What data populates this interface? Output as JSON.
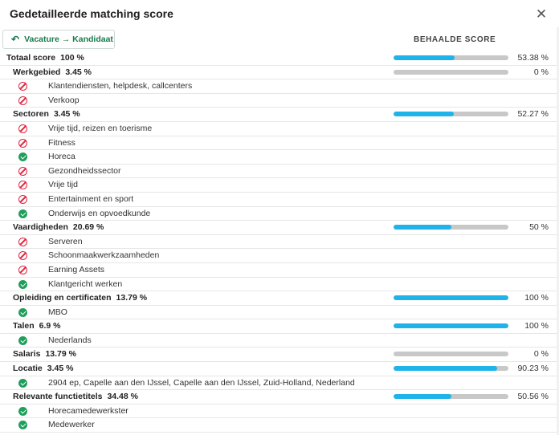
{
  "dialog": {
    "title": "Gedetailleerde matching score",
    "close_icon": "close-icon",
    "direction_button": "Vacature → Kandidaat",
    "direction_icon": "undo-arrow-icon",
    "column_header": "BEHAALDE SCORE"
  },
  "colors": {
    "bar_fill": "#1fb3ea",
    "bar_track": "#c8c8c8",
    "match": "#1f9e5c",
    "no_match": "#e0243f",
    "button_text": "#1a7a4c"
  },
  "rows": [
    {
      "type": "total",
      "name": "Totaal score",
      "weight": "100 %",
      "pct": "53.38 %",
      "value": 53.38
    },
    {
      "type": "cat",
      "name": "Werkgebied",
      "weight": "3.45 %",
      "pct": "0 %",
      "value": 0
    },
    {
      "type": "item",
      "name": "Klantendiensten, helpdesk, callcenters",
      "match": false
    },
    {
      "type": "item",
      "name": "Verkoop",
      "match": false
    },
    {
      "type": "cat",
      "name": "Sectoren",
      "weight": "3.45 %",
      "pct": "52.27 %",
      "value": 52.27
    },
    {
      "type": "item",
      "name": "Vrije tijd, reizen en toerisme",
      "match": false
    },
    {
      "type": "item",
      "name": "Fitness",
      "match": false
    },
    {
      "type": "item",
      "name": "Horeca",
      "match": true
    },
    {
      "type": "item",
      "name": "Gezondheidssector",
      "match": false
    },
    {
      "type": "item",
      "name": "Vrije tijd",
      "match": false
    },
    {
      "type": "item",
      "name": "Entertainment en sport",
      "match": false
    },
    {
      "type": "item",
      "name": "Onderwijs en opvoedkunde",
      "match": true
    },
    {
      "type": "cat",
      "name": "Vaardigheden",
      "weight": "20.69 %",
      "pct": "50 %",
      "value": 50
    },
    {
      "type": "item",
      "name": "Serveren",
      "match": false
    },
    {
      "type": "item",
      "name": "Schoonmaakwerkzaamheden",
      "match": false
    },
    {
      "type": "item",
      "name": "Earning Assets",
      "match": false
    },
    {
      "type": "item",
      "name": "Klantgericht werken",
      "match": true
    },
    {
      "type": "cat",
      "name": "Opleiding en certificaten",
      "weight": "13.79 %",
      "pct": "100 %",
      "value": 100
    },
    {
      "type": "item",
      "name": "MBO",
      "match": true
    },
    {
      "type": "cat",
      "name": "Talen",
      "weight": "6.9 %",
      "pct": "100 %",
      "value": 100
    },
    {
      "type": "item",
      "name": "Nederlands",
      "match": true
    },
    {
      "type": "cat",
      "name": "Salaris",
      "weight": "13.79 %",
      "pct": "0 %",
      "value": 0
    },
    {
      "type": "cat",
      "name": "Locatie",
      "weight": "3.45 %",
      "pct": "90.23 %",
      "value": 90.23
    },
    {
      "type": "item",
      "name": "2904 ep, Capelle aan den IJssel, Capelle aan den IJssel, Zuid-Holland, Nederland",
      "match": true
    },
    {
      "type": "cat",
      "name": "Relevante functietitels",
      "weight": "34.48 %",
      "pct": "50.56 %",
      "value": 50.56
    },
    {
      "type": "item",
      "name": "Horecamedewerkster",
      "match": true
    },
    {
      "type": "item",
      "name": "Medewerker",
      "match": true
    }
  ]
}
